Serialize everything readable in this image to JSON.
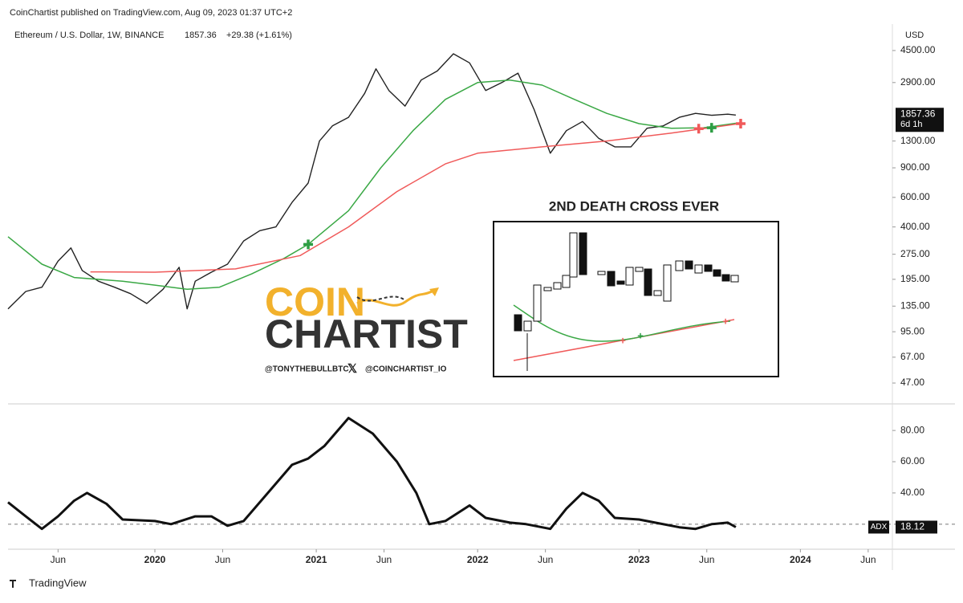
{
  "header": {
    "publisher": "CoinChartist published on TradingView.com, Aug 09, 2023 01:37 UTC+2",
    "symbol": "Ethereum / U.S. Dollar, 1W, BINANCE",
    "last": "1857.36",
    "change": "+29.38 (+1.61%)",
    "currency": "USD",
    "countdown": "6d 1h",
    "footer": "TradingView"
  },
  "branding": {
    "logo_top": "COIN",
    "logo_bottom": "CHARTIST",
    "handle_1": "@TONYTHEBULLBTC",
    "handle_2": "@COINCHARTIST_IO"
  },
  "inset": {
    "title": "2ND DEATH CROSS EVER"
  },
  "chart_data": [
    {
      "type": "line",
      "log_scale": true,
      "xlim": [
        2019.09,
        2024.57
      ],
      "xticks": [
        {
          "value": 2019.4,
          "label": "Jun"
        },
        {
          "value": 2020,
          "label": "2020"
        },
        {
          "value": 2020.42,
          "label": "Jun"
        },
        {
          "value": 2021,
          "label": "2021"
        },
        {
          "value": 2021.42,
          "label": "Jun"
        },
        {
          "value": 2022,
          "label": "2022"
        },
        {
          "value": 2022.42,
          "label": "Jun"
        },
        {
          "value": 2023,
          "label": "2023"
        },
        {
          "value": 2023.42,
          "label": "Jun"
        },
        {
          "value": 2024,
          "label": "2024"
        },
        {
          "value": 2024.42,
          "label": "Jun"
        }
      ],
      "ylim": [
        36.5,
        6120
      ],
      "yticks": [
        {
          "value": 4500,
          "label": "4500.00"
        },
        {
          "value": 2900,
          "label": "2900.00"
        },
        {
          "value": 1300,
          "label": "1300.00"
        },
        {
          "value": 900,
          "label": "900.00"
        },
        {
          "value": 600,
          "label": "600.00"
        },
        {
          "value": 400,
          "label": "400.00"
        },
        {
          "value": 275,
          "label": "275.00"
        },
        {
          "value": 195,
          "label": "195.00"
        },
        {
          "value": 135,
          "label": "135.00"
        },
        {
          "value": 95,
          "label": "95.00"
        },
        {
          "value": 67,
          "label": "67.00"
        },
        {
          "value": 47,
          "label": "47.00"
        }
      ],
      "series": [
        {
          "color": "#222222",
          "width": 1.4,
          "x": [
            2019.09,
            2019.2,
            2019.3,
            2019.4,
            2019.48,
            2019.55,
            2019.65,
            2019.75,
            2019.85,
            2019.95,
            2020.05,
            2020.15,
            2020.2,
            2020.25,
            2020.35,
            2020.45,
            2020.55,
            2020.65,
            2020.75,
            2020.85,
            2020.95,
            2021.02,
            2021.1,
            2021.2,
            2021.3,
            2021.37,
            2021.45,
            2021.55,
            2021.65,
            2021.75,
            2021.85,
            2021.95,
            2022.05,
            2022.15,
            2022.25,
            2022.35,
            2022.45,
            2022.55,
            2022.65,
            2022.75,
            2022.85,
            2022.95,
            2023.05,
            2023.15,
            2023.25,
            2023.35,
            2023.45,
            2023.55,
            2023.6
          ],
          "values": [
            130,
            165,
            175,
            250,
            300,
            220,
            190,
            175,
            160,
            140,
            170,
            230,
            130,
            190,
            215,
            240,
            330,
            380,
            400,
            560,
            730,
            1300,
            1600,
            1800,
            2500,
            3500,
            2600,
            2100,
            3000,
            3400,
            4300,
            3800,
            2600,
            2900,
            3300,
            2000,
            1100,
            1500,
            1700,
            1350,
            1200,
            1200,
            1550,
            1600,
            1800,
            1900,
            1850,
            1880,
            1857.36
          ]
        },
        {
          "color": "#3aa845",
          "width": 1.5,
          "x": [
            2019.09,
            2019.3,
            2019.5,
            2019.8,
            2020.0,
            2020.2,
            2020.4,
            2020.6,
            2020.8,
            2020.95,
            2021.2,
            2021.4,
            2021.6,
            2021.8,
            2022.0,
            2022.2,
            2022.4,
            2022.6,
            2022.8,
            2023.0,
            2023.2,
            2023.4,
            2023.6
          ],
          "values": [
            350,
            240,
            200,
            190,
            180,
            170,
            175,
            210,
            260,
            315,
            500,
            900,
            1500,
            2300,
            2900,
            3000,
            2800,
            2300,
            1900,
            1650,
            1550,
            1560,
            1660
          ]
        },
        {
          "color": "#f05a5a",
          "width": 1.5,
          "x": [
            2019.6,
            2020.0,
            2020.5,
            2020.9,
            2021.2,
            2021.5,
            2021.8,
            2022.0,
            2022.4,
            2022.8,
            2023.2,
            2023.6
          ],
          "values": [
            216,
            215,
            225,
            270,
            400,
            650,
            950,
            1100,
            1200,
            1300,
            1450,
            1640
          ]
        }
      ],
      "crossovers": [
        {
          "x": 2020.95,
          "value": 315,
          "color": "#2e9e44"
        },
        {
          "x": 2023.37,
          "value": 1540,
          "color": "#f05a5a"
        },
        {
          "x": 2023.45,
          "value": 1560,
          "color": "#2e9e44"
        },
        {
          "x": 2023.63,
          "value": 1650,
          "color": "#f05a5a"
        }
      ]
    },
    {
      "type": "line",
      "name": "ADX",
      "reference": 20,
      "xlim": [
        2019.09,
        2024.57
      ],
      "ylim": [
        5,
        96
      ],
      "yticks": [
        {
          "value": 80,
          "label": "80.00"
        },
        {
          "value": 60,
          "label": "60.00"
        },
        {
          "value": 40,
          "label": "40.00"
        }
      ],
      "series": [
        {
          "color": "#111111",
          "width": 3,
          "x": [
            2019.09,
            2019.2,
            2019.3,
            2019.4,
            2019.5,
            2019.58,
            2019.7,
            2019.8,
            2020.0,
            2020.1,
            2020.25,
            2020.35,
            2020.45,
            2020.55,
            2020.7,
            2020.85,
            2020.95,
            2021.05,
            2021.2,
            2021.35,
            2021.5,
            2021.62,
            2021.7,
            2021.8,
            2021.95,
            2022.05,
            2022.2,
            2022.3,
            2022.45,
            2022.55,
            2022.65,
            2022.75,
            2022.85,
            2023.0,
            2023.1,
            2023.25,
            2023.35,
            2023.45,
            2023.55,
            2023.6
          ],
          "values": [
            34,
            25,
            17,
            25,
            35,
            40,
            33,
            23,
            22,
            20,
            25,
            25,
            19,
            22,
            40,
            58,
            62,
            70,
            88,
            78,
            60,
            40,
            20,
            22,
            32,
            24,
            21,
            20,
            17,
            30,
            40,
            35,
            24,
            23,
            21,
            18,
            17,
            20,
            21,
            18.12
          ]
        }
      ]
    }
  ]
}
